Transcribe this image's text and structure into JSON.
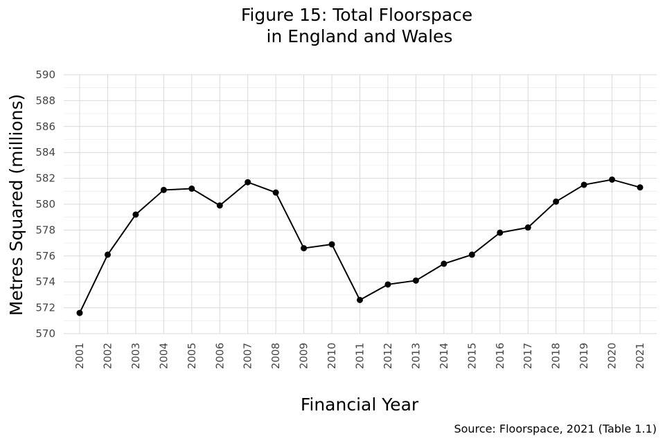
{
  "chart_data": {
    "type": "line",
    "title": [
      "Figure 15: Total Floorspace",
      "in England and Wales"
    ],
    "xlabel": "Financial Year",
    "ylabel": "Metres Squared (millions)",
    "source": "Source: Floorspace, 2021 (Table 1.1)",
    "ylim": [
      570,
      590
    ],
    "yticks": [
      570,
      572,
      574,
      576,
      578,
      580,
      582,
      584,
      586,
      588,
      590
    ],
    "x": [
      "2001",
      "2002",
      "2003",
      "2004",
      "2005",
      "2006",
      "2007",
      "2008",
      "2009",
      "2010",
      "2011",
      "2012",
      "2013",
      "2014",
      "2015",
      "2016",
      "2017",
      "2018",
      "2019",
      "2020",
      "2021"
    ],
    "series": [
      {
        "name": "Total Floorspace",
        "values": [
          571.6,
          576.1,
          579.2,
          581.1,
          581.2,
          579.9,
          581.7,
          580.9,
          576.6,
          576.9,
          572.6,
          573.8,
          574.1,
          575.4,
          576.1,
          577.8,
          578.2,
          580.2,
          581.5,
          581.9,
          581.3
        ]
      }
    ]
  }
}
